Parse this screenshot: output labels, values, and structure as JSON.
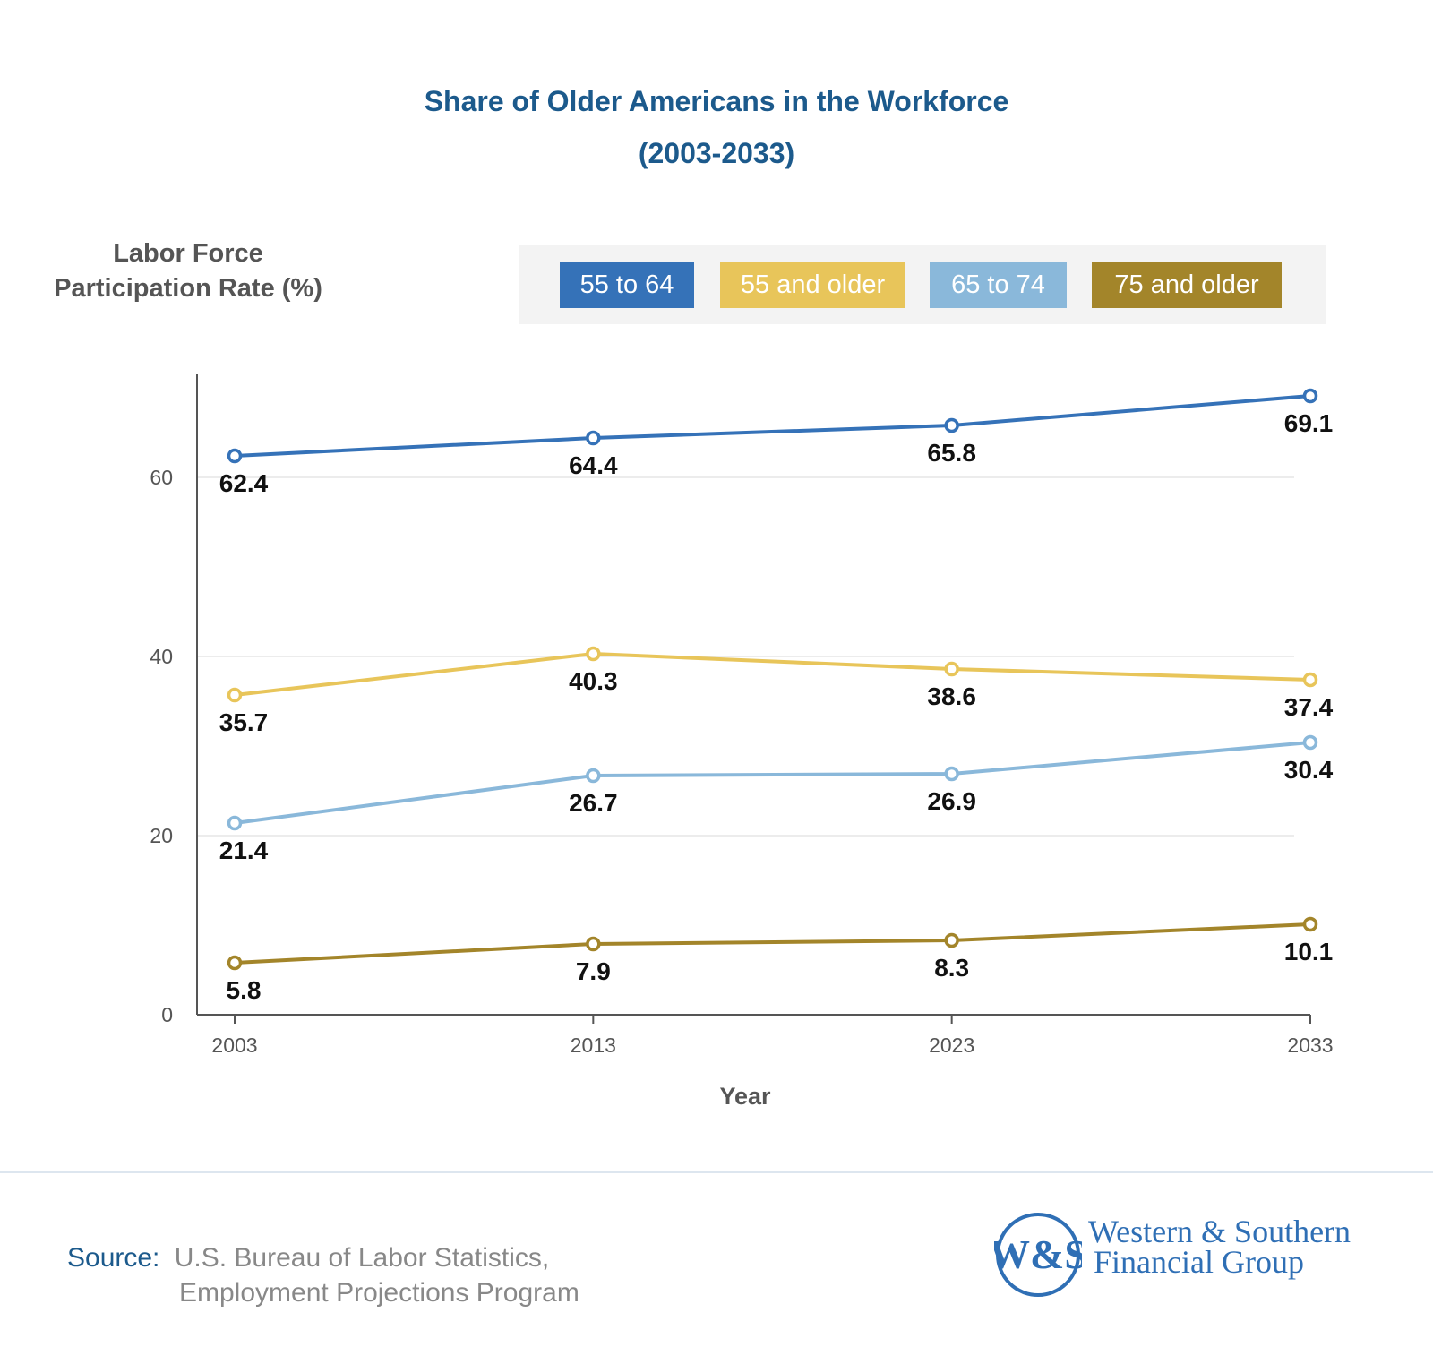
{
  "chart_data": {
    "type": "line",
    "title": "Share of Older Americans in the Workforce",
    "subtitle": "(2003-2033)",
    "ylabel": "Labor Force Participation Rate (%)",
    "ylabel_lines": [
      "Labor Force",
      "Participation Rate (%)"
    ],
    "xlabel": "Year",
    "categories": [
      "2003",
      "2013",
      "2023",
      "2033"
    ],
    "ylim": [
      0,
      70
    ],
    "yticks": [
      "0",
      "20",
      "40",
      "60"
    ],
    "grid": true,
    "legend_placement": "top-right",
    "series": [
      {
        "name": "55 to 64",
        "color": "#3572b8",
        "values": [
          62.4,
          64.4,
          65.8,
          69.1
        ],
        "labels": [
          "62.4",
          "64.4",
          "65.8",
          "69.1"
        ]
      },
      {
        "name": "55 and older",
        "color": "#e8c55a",
        "values": [
          35.7,
          40.3,
          38.6,
          37.4
        ],
        "labels": [
          "35.7",
          "40.3",
          "38.6",
          "37.4"
        ]
      },
      {
        "name": "65 to 74",
        "color": "#8ab8da",
        "values": [
          21.4,
          26.7,
          26.9,
          30.4
        ],
        "labels": [
          "21.4",
          "26.7",
          "26.9",
          "30.4"
        ]
      },
      {
        "name": "75 and older",
        "color": "#a3852a",
        "values": [
          5.8,
          7.9,
          8.3,
          10.1
        ],
        "labels": [
          "5.8",
          "7.9",
          "8.3",
          "10.1"
        ]
      }
    ]
  },
  "footer": {
    "source_label": "Source:",
    "source_line1": "U.S. Bureau of Labor Statistics,",
    "source_line2": "Employment Projections Program",
    "logo_text": "W&S Western & Southern Financial Group",
    "logo_line1": "Western & Southern",
    "logo_line2": "Financial Group"
  }
}
